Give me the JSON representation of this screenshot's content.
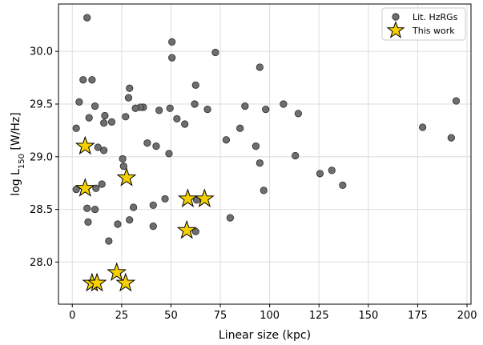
{
  "chart_data": {
    "type": "scatter",
    "xlabel": "Linear size (kpc)",
    "ylabel": "log L",
    "ylabel_sub": "150",
    "ylabel_unit": " [W/Hz]",
    "xlim": [
      -7,
      202
    ],
    "ylim": [
      27.6,
      30.45
    ],
    "xticks": [
      0,
      25,
      50,
      75,
      100,
      125,
      150,
      175,
      200
    ],
    "xtick_labels": [
      "0",
      "25",
      "50",
      "75",
      "100",
      "125",
      "150",
      "175",
      "200"
    ],
    "yticks": [
      28.0,
      28.5,
      29.0,
      29.5,
      30.0
    ],
    "ytick_labels": [
      "28.0",
      "28.5",
      "29.0",
      "29.5",
      "30.0"
    ],
    "grid": true,
    "legend_position": "top-right",
    "colors": {
      "lit": "#6e6e6e",
      "lit_edge": "#2b2b2b",
      "work": "#f5d000",
      "work_edge": "#000000",
      "grid": "#dddddd"
    },
    "series": [
      {
        "name": "Lit. HzRGs",
        "marker": "circle",
        "points": [
          [
            7.5,
            30.32
          ],
          [
            50.5,
            30.09
          ],
          [
            72.5,
            29.99
          ],
          [
            50.5,
            29.94
          ],
          [
            95,
            29.85
          ],
          [
            5.5,
            29.73
          ],
          [
            10,
            29.73
          ],
          [
            62.5,
            29.68
          ],
          [
            29,
            29.65
          ],
          [
            28.5,
            29.56
          ],
          [
            3.5,
            29.52
          ],
          [
            62,
            29.5
          ],
          [
            194.5,
            29.53
          ],
          [
            107,
            29.5
          ],
          [
            87.5,
            29.48
          ],
          [
            11.5,
            29.48
          ],
          [
            36,
            29.47
          ],
          [
            34.5,
            29.47
          ],
          [
            32,
            29.46
          ],
          [
            49.5,
            29.46
          ],
          [
            68.5,
            29.45
          ],
          [
            98,
            29.45
          ],
          [
            44,
            29.44
          ],
          [
            114.5,
            29.41
          ],
          [
            16.5,
            29.39
          ],
          [
            27,
            29.38
          ],
          [
            8.5,
            29.37
          ],
          [
            53,
            29.36
          ],
          [
            20,
            29.33
          ],
          [
            16,
            29.32
          ],
          [
            57,
            29.31
          ],
          [
            2,
            29.27
          ],
          [
            85,
            29.27
          ],
          [
            177.5,
            29.28
          ],
          [
            78,
            29.16
          ],
          [
            192,
            29.18
          ],
          [
            38,
            29.13
          ],
          [
            42.5,
            29.1
          ],
          [
            93,
            29.1
          ],
          [
            13,
            29.09
          ],
          [
            16,
            29.06
          ],
          [
            49,
            29.03
          ],
          [
            113,
            29.01
          ],
          [
            25.5,
            28.98
          ],
          [
            95,
            28.94
          ],
          [
            26,
            28.91
          ],
          [
            131.5,
            28.87
          ],
          [
            125.5,
            28.84
          ],
          [
            2,
            28.69
          ],
          [
            12,
            28.7
          ],
          [
            15,
            28.74
          ],
          [
            137,
            28.73
          ],
          [
            97,
            28.68
          ],
          [
            47,
            28.6
          ],
          [
            63,
            28.59
          ],
          [
            41,
            28.54
          ],
          [
            31,
            28.52
          ],
          [
            7.5,
            28.51
          ],
          [
            11.5,
            28.5
          ],
          [
            80,
            28.42
          ],
          [
            29,
            28.4
          ],
          [
            8,
            28.38
          ],
          [
            23,
            28.36
          ],
          [
            41,
            28.34
          ],
          [
            62.5,
            28.29
          ],
          [
            18.5,
            28.2
          ]
        ]
      },
      {
        "name": "This work",
        "marker": "star",
        "points": [
          [
            6.5,
            29.1
          ],
          [
            27.5,
            28.8
          ],
          [
            6.5,
            28.7
          ],
          [
            58.5,
            28.6
          ],
          [
            67,
            28.6
          ],
          [
            58,
            28.3
          ],
          [
            22.5,
            27.9
          ],
          [
            10,
            27.8
          ],
          [
            12.5,
            27.8
          ],
          [
            27,
            27.8
          ]
        ]
      }
    ]
  }
}
